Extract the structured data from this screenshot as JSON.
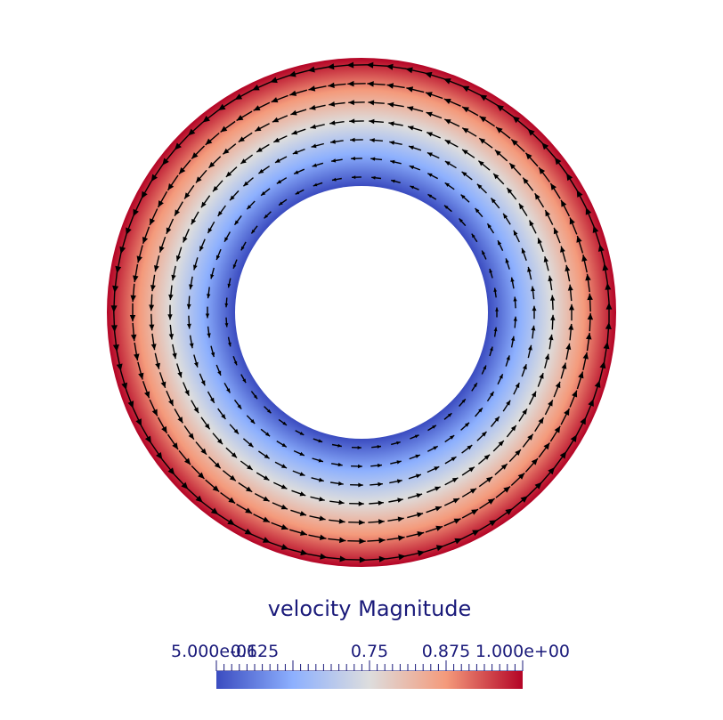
{
  "colorbar": {
    "title": "velocity Magnitude",
    "range": [
      0.5,
      1.0
    ],
    "tick_labels": [
      "5.000e-01",
      "0.625",
      "0.75",
      "0.875",
      "1.000e+00"
    ],
    "tick_values": [
      0.5,
      0.625,
      0.75,
      0.875,
      1.0
    ],
    "colormap": [
      "#3b4cc0",
      "#8db0fe",
      "#dddddd",
      "#f49a7b",
      "#b40426"
    ]
  },
  "field": {
    "flow_direction": "counter-clockwise",
    "inner_color_value": 0.5,
    "outer_color_value": 1.0
  }
}
